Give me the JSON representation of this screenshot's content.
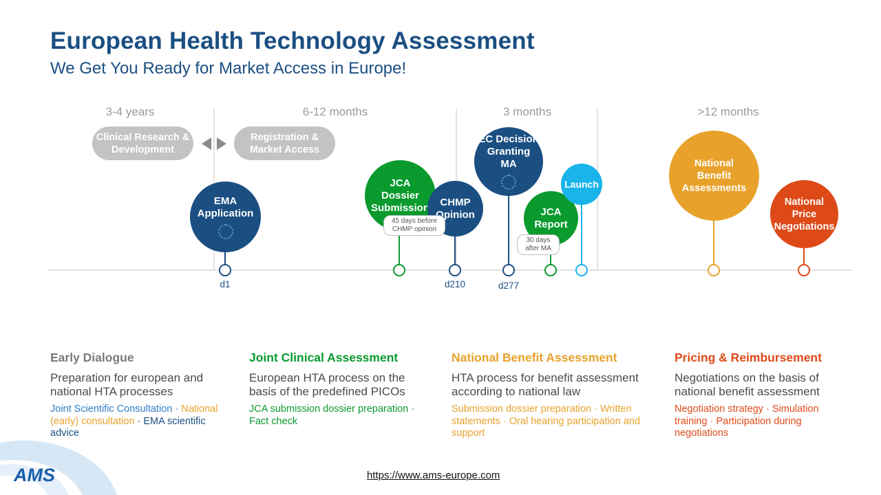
{
  "header": {
    "title": "European Health Technology Assessment",
    "subtitle": "We Get You Ready for Market Access in Europe!"
  },
  "timeline": {
    "periods": [
      "3-4 years",
      "6-12 months",
      "3 months",
      ">12 months"
    ],
    "phases": [
      "Clinical Research & Development",
      "Registration & Market Access"
    ],
    "milestones": {
      "ema": "EMA Application",
      "jca_dossier": "JCA Dossier Submission",
      "chmp": "CHMP Opinion",
      "ec_decision": "EC Decision Granting MA",
      "jca_report": "JCA Report",
      "launch": "Launch",
      "nba": "National Benefit Assessments",
      "npn": "National Price Negotiations"
    },
    "notes": {
      "jca_dossier": "45 days before CHMP opinion",
      "jca_report": "30 days after MA"
    },
    "day_labels": [
      "d1",
      "d210",
      "d277"
    ]
  },
  "columns": [
    {
      "heading": "Early Dialogue",
      "description": "Preparation for european and national HTA processes",
      "services": [
        "Joint Scientific Consultation",
        "National (early) consultation",
        "EMA scientific advice"
      ]
    },
    {
      "heading": "Joint Clinical Assessment",
      "description": "European HTA process on the basis of the predefined PICOs",
      "services": [
        "JCA submission dossier preparation",
        "Fact check"
      ]
    },
    {
      "heading": "National Benefit Assessment",
      "description": "HTA process for benefit assessment according to national law",
      "services": [
        "Submission dossier preparation",
        "Written statements",
        "Oral hearing participation and support"
      ]
    },
    {
      "heading": "Pricing & Reimbursement",
      "description": "Negotiations on the basis of national benefit assessment",
      "services": [
        "Negotiation strategy",
        "Simulation training",
        "Participation during negotiations"
      ]
    }
  ],
  "footer": {
    "url": "https://www.ams-europe.com",
    "logo": "AMS"
  },
  "colors": {
    "navy": "#1b4f82",
    "green": "#0a9a2d",
    "amber": "#e8a22b",
    "red": "#dd4a17",
    "cyan": "#19b4ea",
    "grey": "#c3c3c3",
    "blue_service": "#2f7fc6"
  }
}
